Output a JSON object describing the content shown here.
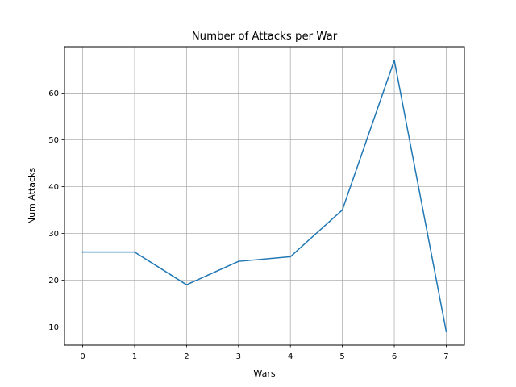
{
  "chart_data": {
    "type": "line",
    "title": "Number of Attacks per War",
    "xlabel": "Wars",
    "ylabel": "Num Attacks",
    "x": [
      0,
      1,
      2,
      3,
      4,
      5,
      6,
      7
    ],
    "series": [
      {
        "values": [
          26,
          26,
          19,
          24,
          25,
          35,
          67,
          9
        ]
      }
    ],
    "xlim": [
      -0.35,
      7.35
    ],
    "ylim": [
      6.1,
      69.9
    ],
    "xticks": [
      "0",
      "1",
      "2",
      "3",
      "4",
      "5",
      "6",
      "7"
    ],
    "yticks": [
      "10",
      "20",
      "30",
      "40",
      "50",
      "60"
    ],
    "grid": true,
    "legend": "none",
    "colors": {
      "line": "#1f77b4",
      "grid": "#b0b0b0",
      "axes": "#000000"
    }
  }
}
